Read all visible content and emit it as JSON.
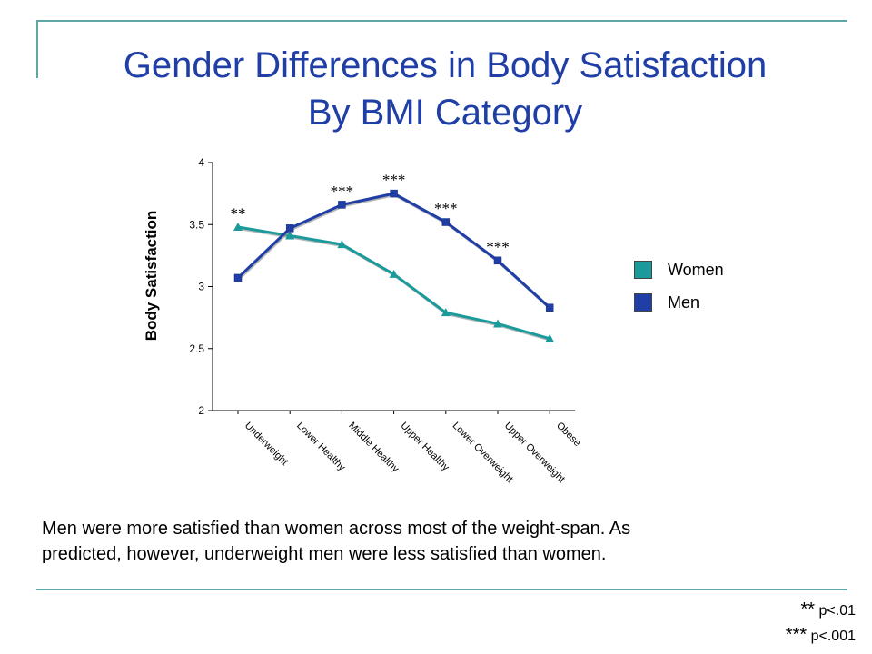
{
  "slide": {
    "title_line1": "Gender Differences in Body Satisfaction",
    "title_line2": "By BMI Category",
    "caption_line1": "Men were more satisfied than women across most of the weight-span. As",
    "caption_line2": "predicted, however, underweight men were less satisfied than women.",
    "footnotes": [
      {
        "stars": "**",
        "text": "p<.01"
      },
      {
        "stars": "***",
        "text": "p<.001"
      }
    ],
    "accent_color": "#5fa7a7",
    "title_color": "#1f3ea6"
  },
  "legend": [
    {
      "label": "Women",
      "color": "#1a9a9a"
    },
    {
      "label": "Men",
      "color": "#1f3ea6"
    }
  ],
  "chart_data": {
    "type": "line",
    "title": "",
    "xlabel": "",
    "ylabel": "Body Satisfaction",
    "ylim": [
      2,
      4
    ],
    "yticks": [
      2,
      2.5,
      3,
      3.5,
      4
    ],
    "grid": false,
    "legend_position": "right",
    "categories": [
      "Underweight",
      "Lower Healthy",
      "Middle Healthy",
      "Upper Healthy",
      "Lower Overweight",
      "Upper Overweight",
      "Obese"
    ],
    "series": [
      {
        "name": "Women",
        "color": "#1a9a9a",
        "marker": "triangle",
        "values": [
          3.48,
          3.41,
          3.34,
          3.1,
          2.79,
          2.7,
          2.58
        ]
      },
      {
        "name": "Men",
        "color": "#1f3ea6",
        "marker": "square",
        "values": [
          3.07,
          3.47,
          3.66,
          3.75,
          3.52,
          3.21,
          2.83
        ]
      }
    ],
    "annotations": [
      {
        "category": "Underweight",
        "text": "**",
        "y": 3.55
      },
      {
        "category": "Middle Healthy",
        "text": "***",
        "y": 3.73
      },
      {
        "category": "Upper Healthy",
        "text": "***",
        "y": 3.82
      },
      {
        "category": "Lower Overweight",
        "text": "***",
        "y": 3.59
      },
      {
        "category": "Upper Overweight",
        "text": "***",
        "y": 3.28
      }
    ]
  }
}
